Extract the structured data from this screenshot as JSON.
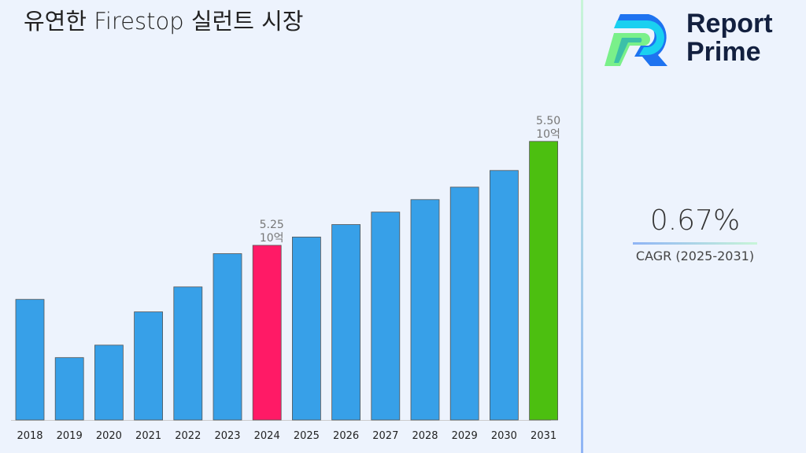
{
  "title": "유연한 Firestop 실런트 시장",
  "brand": {
    "line1": "Report",
    "line2": "Prime"
  },
  "cagr": {
    "value": "0.67%",
    "label": "CAGR (2025-2031)"
  },
  "chart_data": {
    "type": "bar",
    "categories": [
      "2018",
      "2019",
      "2020",
      "2021",
      "2022",
      "2023",
      "2024",
      "2025",
      "2026",
      "2027",
      "2028",
      "2029",
      "2030",
      "2031"
    ],
    "values": [
      5.12,
      4.98,
      5.01,
      5.09,
      5.15,
      5.23,
      5.25,
      5.27,
      5.3,
      5.33,
      5.36,
      5.39,
      5.43,
      5.5
    ],
    "unit": "10억",
    "ylim": [
      4.83,
      5.84
    ],
    "grid": false,
    "data_labels": [
      {
        "category": "2024",
        "value": "5.25",
        "unit": "10억"
      },
      {
        "category": "2031",
        "value": "5.50",
        "unit": "10억"
      }
    ],
    "colors": {
      "default": "#37a0e8",
      "2024": "#ff1a66",
      "2031": "#4cbf10"
    }
  }
}
